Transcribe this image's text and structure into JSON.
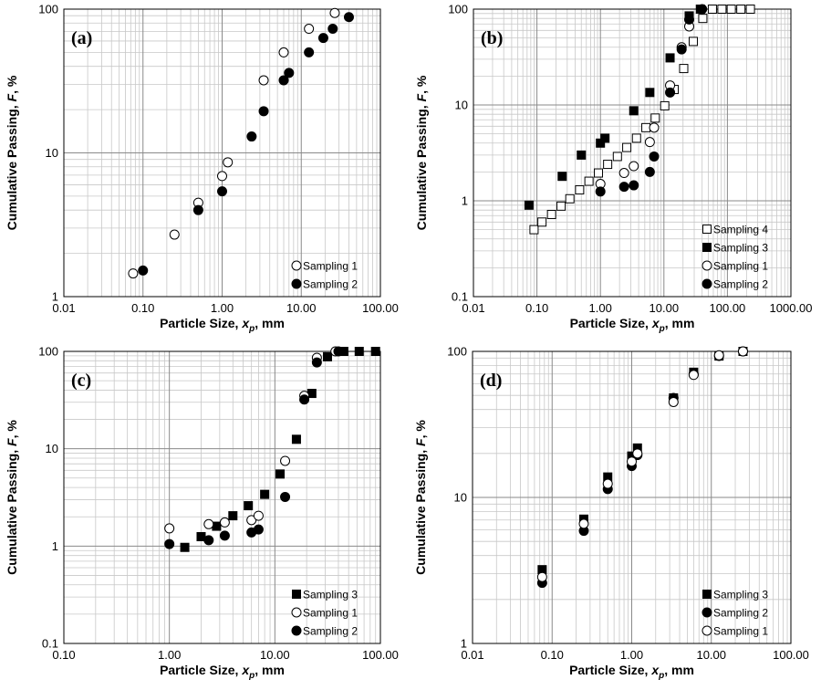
{
  "chart_data": [
    {
      "type": "scatter",
      "panel_label": "(a)",
      "xlabel_main": "Particle Size, ",
      "xlabel_var": "x",
      "xlabel_sub": "p",
      "xlabel_unit": ", mm",
      "ylabel_main": "Cumulative Passing, ",
      "ylabel_var": "F",
      "ylabel_unit": ", %",
      "xscale": "log",
      "yscale": "log",
      "xlim": [
        0.01,
        100
      ],
      "ylim": [
        1,
        100
      ],
      "xticks": [
        "0.01",
        "0.10",
        "1.00",
        "10.00",
        "100.00"
      ],
      "yticks": [
        "1",
        "10",
        "100"
      ],
      "grid": true,
      "legend_position": "bottom-right",
      "series": [
        {
          "name": "Sampling 1",
          "marker": "open-circle",
          "x": [
            0.075,
            0.25,
            0.5,
            1.0,
            1.18,
            3.35,
            6.0,
            12.5,
            26.5
          ],
          "y": [
            1.45,
            2.7,
            4.5,
            6.9,
            8.6,
            32,
            50,
            73,
            94
          ]
        },
        {
          "name": "Sampling 2",
          "marker": "filled-circle",
          "x": [
            0.1,
            0.5,
            1.0,
            2.36,
            3.35,
            6.0,
            7.0,
            12.5,
            19.0,
            25.0,
            40.0
          ],
          "y": [
            1.52,
            4.0,
            5.4,
            13,
            19.5,
            32,
            36,
            50,
            63,
            73,
            88
          ]
        }
      ]
    },
    {
      "type": "scatter",
      "panel_label": "(b)",
      "xlabel_main": "Particle Size, ",
      "xlabel_var": "x",
      "xlabel_sub": "p",
      "xlabel_unit": ", mm",
      "ylabel_main": "Cumulative Passing, ",
      "ylabel_var": "F",
      "ylabel_unit": ", %",
      "xscale": "log",
      "yscale": "log",
      "xlim": [
        0.01,
        1000
      ],
      "ylim": [
        0.1,
        100
      ],
      "xticks": [
        "0.01",
        "0.10",
        "1.00",
        "10.00",
        "100.00",
        "1000.00"
      ],
      "yticks": [
        "0.1",
        "1",
        "10",
        "100"
      ],
      "grid": true,
      "legend_position": "bottom-right",
      "series": [
        {
          "name": "Sampling 4",
          "marker": "open-square",
          "x": [
            0.09,
            0.12,
            0.17,
            0.24,
            0.33,
            0.47,
            0.66,
            0.93,
            1.3,
            1.85,
            2.6,
            3.7,
            5.2,
            7.3,
            10.3,
            14.5,
            20.5,
            29,
            41,
            58,
            82,
            115,
            163,
            230
          ],
          "y": [
            0.5,
            0.6,
            0.72,
            0.88,
            1.05,
            1.3,
            1.6,
            1.95,
            2.4,
            2.9,
            3.6,
            4.5,
            5.8,
            7.3,
            9.8,
            14.5,
            24,
            46,
            80,
            100,
            100,
            100,
            100,
            100
          ]
        },
        {
          "name": "Sampling 3",
          "marker": "filled-square",
          "x": [
            0.075,
            0.25,
            0.5,
            1.0,
            1.18,
            3.35,
            6.0,
            12.5,
            25.0,
            37.5
          ],
          "y": [
            0.9,
            1.8,
            3.0,
            4.0,
            4.5,
            8.7,
            13.5,
            31,
            85,
            100
          ]
        },
        {
          "name": "Sampling 1",
          "marker": "open-circle",
          "x": [
            1.0,
            2.36,
            3.35,
            6.0,
            7.0,
            12.5,
            19.0,
            25.0
          ],
          "y": [
            1.5,
            1.95,
            2.3,
            4.1,
            5.8,
            16,
            40,
            66
          ]
        },
        {
          "name": "Sampling 2",
          "marker": "filled-circle",
          "x": [
            1.0,
            2.36,
            3.35,
            6.0,
            7.0,
            12.5,
            19.0,
            25.0,
            40.0
          ],
          "y": [
            1.25,
            1.4,
            1.45,
            2.0,
            2.9,
            13.5,
            38,
            78,
            100
          ]
        }
      ]
    },
    {
      "type": "scatter",
      "panel_label": "(c)",
      "xlabel_main": "Particle Size, ",
      "xlabel_var": "x",
      "xlabel_sub": "p",
      "xlabel_unit": ", mm",
      "ylabel_main": "Cumulative Passing, ",
      "ylabel_var": "F",
      "ylabel_unit": ", %",
      "xscale": "log",
      "yscale": "log",
      "xlim": [
        0.1,
        100
      ],
      "ylim": [
        0.1,
        100
      ],
      "xticks": [
        "0.10",
        "1.00",
        "10.00",
        "100.00"
      ],
      "yticks": [
        "0.1",
        "1",
        "10",
        "100"
      ],
      "grid": true,
      "legend_position": "bottom-right",
      "series": [
        {
          "name": "Sampling 3",
          "marker": "filled-square",
          "x": [
            1.4,
            2.0,
            2.8,
            4.0,
            5.6,
            8.0,
            11.2,
            16.0,
            22.4,
            31.5,
            40.0,
            45.0,
            63.0,
            90.0
          ],
          "y": [
            0.97,
            1.25,
            1.6,
            2.05,
            2.6,
            3.4,
            5.5,
            12.5,
            37,
            88,
            100,
            100,
            100,
            100
          ]
        },
        {
          "name": "Sampling 1",
          "marker": "open-circle",
          "x": [
            1.0,
            2.36,
            3.35,
            6.0,
            7.0,
            12.5,
            19.0,
            25.0,
            37.5
          ],
          "y": [
            1.52,
            1.68,
            1.75,
            1.85,
            2.05,
            7.5,
            35,
            86,
            100
          ]
        },
        {
          "name": "Sampling 2",
          "marker": "filled-circle",
          "x": [
            1.0,
            2.36,
            3.35,
            6.0,
            7.0,
            12.5,
            19.0,
            25.0,
            40.0
          ],
          "y": [
            1.05,
            1.15,
            1.28,
            1.38,
            1.48,
            3.2,
            32,
            77,
            100
          ]
        }
      ]
    },
    {
      "type": "scatter",
      "panel_label": "(d)",
      "xlabel_main": "Particle Size, ",
      "xlabel_var": "x",
      "xlabel_sub": "p",
      "xlabel_unit": ", mm",
      "ylabel_main": "Cumulative Passing, ",
      "ylabel_var": "F",
      "ylabel_unit": ", %",
      "xscale": "log",
      "yscale": "log",
      "xlim": [
        0.01,
        100
      ],
      "ylim": [
        1,
        100
      ],
      "xticks": [
        "0.01",
        "0.10",
        "1.00",
        "10.00",
        "100.00"
      ],
      "yticks": [
        "1",
        "10",
        "100"
      ],
      "grid": true,
      "legend_position": "bottom-right",
      "series": [
        {
          "name": "Sampling 3",
          "marker": "filled-square",
          "x": [
            0.075,
            0.25,
            0.5,
            1.0,
            1.18,
            3.35,
            6.0,
            12.5,
            25.0
          ],
          "y": [
            3.2,
            7.1,
            13.8,
            19.2,
            21.8,
            48,
            72,
            93,
            100
          ]
        },
        {
          "name": "Sampling 2",
          "marker": "filled-circle",
          "x": [
            0.075,
            0.25,
            0.5,
            1.0,
            1.18,
            3.35,
            6.0,
            12.5,
            25.0
          ],
          "y": [
            2.6,
            5.9,
            11.4,
            16.4,
            19.5,
            48,
            70,
            93,
            100
          ]
        },
        {
          "name": "Sampling 1",
          "marker": "open-circle",
          "x": [
            0.075,
            0.25,
            0.5,
            1.0,
            1.18,
            3.35,
            6.0,
            12.5,
            25.0
          ],
          "y": [
            2.85,
            6.6,
            12.4,
            17.6,
            20,
            45,
            69,
            94,
            100
          ]
        }
      ]
    }
  ]
}
